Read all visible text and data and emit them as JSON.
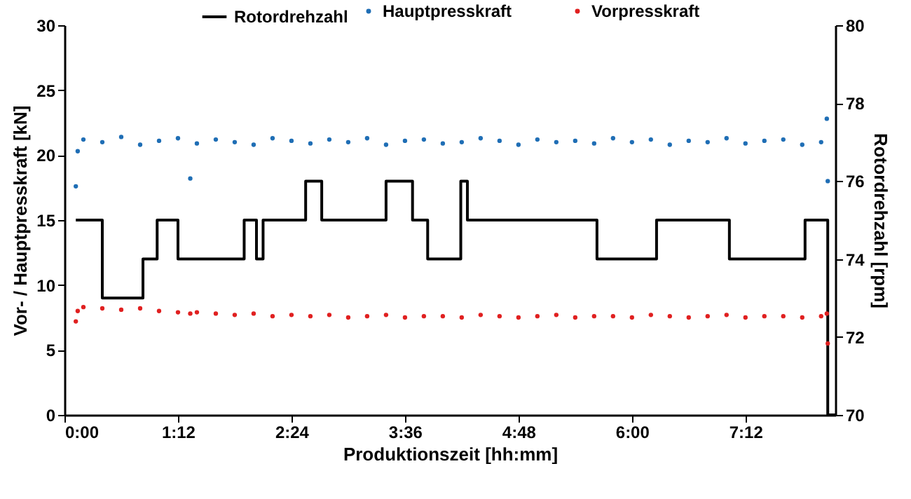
{
  "chart_data": {
    "type": "scatter",
    "xlabel": "Produktionszeit [hh:mm]",
    "ylabel": "Vor- / Hauptpresskraft [kN]",
    "y2label": "Rotordrehzahl [rpm]",
    "x": [
      0.12,
      0.14,
      0.2,
      0.4,
      0.6,
      0.8,
      1.0,
      1.2,
      1.33,
      1.4,
      1.6,
      1.8,
      2.0,
      2.2,
      2.4,
      2.6,
      2.8,
      3.0,
      3.2,
      3.4,
      3.6,
      3.8,
      4.0,
      4.2,
      4.4,
      4.6,
      4.8,
      5.0,
      5.2,
      5.4,
      5.6,
      5.8,
      6.0,
      6.2,
      6.4,
      6.6,
      6.8,
      7.0,
      7.2,
      7.4,
      7.6,
      7.8,
      8.0,
      8.06,
      8.07
    ],
    "series": [
      {
        "name": "Hauptpresskraft",
        "color": "#1f6eb5",
        "values": [
          17.6,
          20.3,
          21.2,
          21.0,
          21.4,
          20.8,
          21.1,
          21.3,
          18.2,
          20.9,
          21.2,
          21.0,
          20.8,
          21.3,
          21.1,
          20.9,
          21.2,
          21.0,
          21.3,
          20.8,
          21.1,
          21.2,
          20.9,
          21.0,
          21.3,
          21.1,
          20.8,
          21.2,
          21.0,
          21.1,
          20.9,
          21.3,
          21.0,
          21.2,
          20.8,
          21.1,
          21.0,
          21.3,
          20.9,
          21.1,
          21.2,
          20.8,
          21.0,
          22.8,
          18.0
        ]
      },
      {
        "name": "Vorpresskraft",
        "color": "#e02020",
        "values": [
          7.2,
          8.0,
          8.3,
          8.2,
          8.1,
          8.2,
          8.0,
          7.9,
          7.8,
          7.9,
          7.8,
          7.7,
          7.8,
          7.6,
          7.7,
          7.6,
          7.7,
          7.5,
          7.6,
          7.7,
          7.5,
          7.6,
          7.6,
          7.5,
          7.7,
          7.6,
          7.5,
          7.6,
          7.7,
          7.5,
          7.6,
          7.6,
          7.5,
          7.7,
          7.6,
          7.5,
          7.6,
          7.7,
          7.5,
          7.6,
          7.6,
          7.5,
          7.6,
          7.8,
          5.5
        ]
      },
      {
        "name": "Rotordrehzahl",
        "type": "step",
        "axis": "y2",
        "color": "#000000",
        "line_style": "solid",
        "marker": "none",
        "x": [
          0.12,
          0.4,
          0.83,
          0.98,
          1.2,
          1.9,
          2.03,
          2.1,
          2.55,
          2.72,
          3.4,
          3.68,
          3.84,
          4.19,
          4.26,
          5.63,
          6.26,
          7.03,
          7.83,
          8.07,
          8.15
        ],
        "values": [
          75,
          73,
          74,
          75,
          74,
          75,
          74,
          75,
          76,
          75,
          76,
          75,
          74,
          76,
          75,
          74,
          75,
          74,
          75,
          70,
          70
        ]
      }
    ],
    "marker": "circle",
    "xlim": [
      0,
      8.15
    ],
    "xticks": [
      {
        "value": 0,
        "label": "0:00"
      },
      {
        "value": 1.2,
        "label": "1:12"
      },
      {
        "value": 2.4,
        "label": "2:24"
      },
      {
        "value": 3.6,
        "label": "3:36"
      },
      {
        "value": 4.8,
        "label": "4:48"
      },
      {
        "value": 6.0,
        "label": "6:00"
      },
      {
        "value": 7.2,
        "label": "7:12"
      }
    ],
    "ylim": [
      0,
      30
    ],
    "yticks": [
      0,
      5,
      10,
      15,
      20,
      25,
      30
    ],
    "y2lim": [
      70,
      80
    ],
    "y2ticks": [
      70,
      72,
      74,
      76,
      78,
      80
    ],
    "grid": false,
    "legend": "top"
  }
}
